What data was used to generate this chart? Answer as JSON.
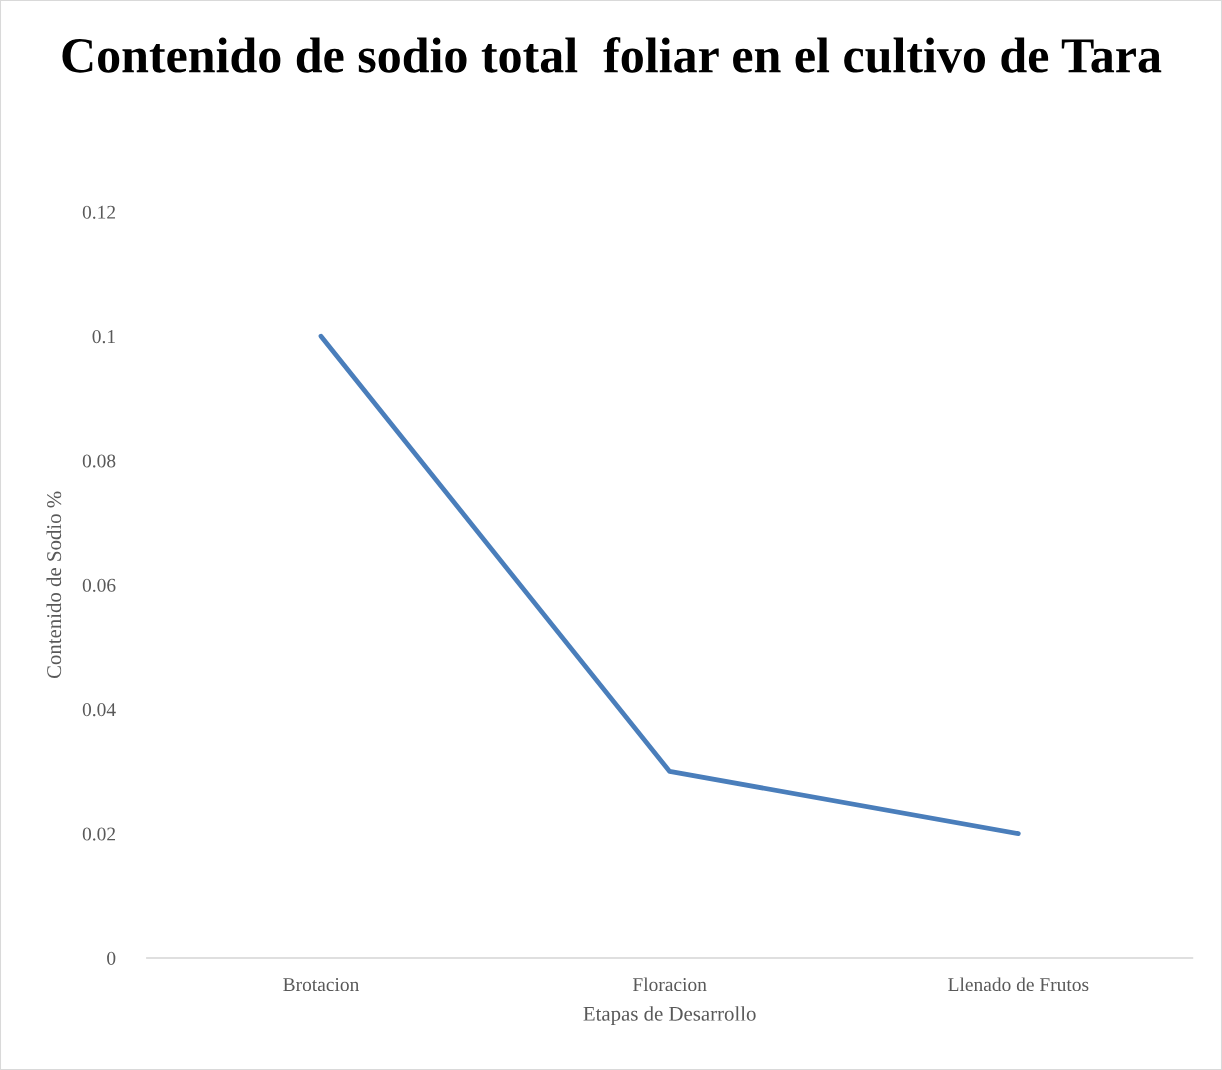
{
  "chart_data": {
    "type": "line",
    "title": "Contenido de sodio total  foliar en el cultivo de Tara",
    "xlabel": "Etapas de Desarrollo",
    "ylabel": "Contenido de Sodio %",
    "categories": [
      "Brotacion",
      "Floracion",
      "Llenado de Frutos"
    ],
    "series": [
      {
        "color": "#4a7ebb",
        "values": [
          0.1,
          0.03,
          0.02
        ]
      }
    ],
    "ylim": [
      0,
      0.12
    ],
    "yticks": [
      0,
      0.02,
      0.04,
      0.06,
      0.08,
      0.1,
      0.12
    ],
    "grid": false,
    "legend": false,
    "marker": "none",
    "line_style": "solid"
  }
}
